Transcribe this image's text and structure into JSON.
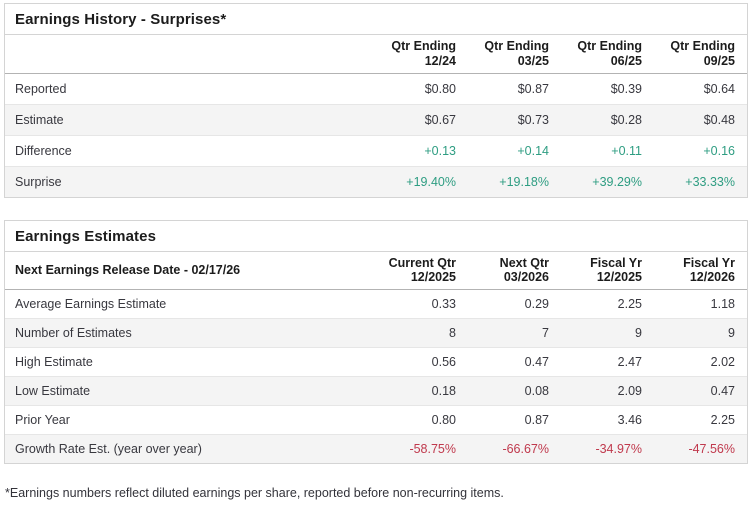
{
  "colors": {
    "green": "#2e9d82",
    "red": "#c0394d"
  },
  "surprises": {
    "title": "Earnings History - Surprises*",
    "columns": [
      {
        "line1": "Qtr Ending",
        "line2": "12/24"
      },
      {
        "line1": "Qtr Ending",
        "line2": "03/25"
      },
      {
        "line1": "Qtr Ending",
        "line2": "06/25"
      },
      {
        "line1": "Qtr Ending",
        "line2": "09/25"
      }
    ],
    "rows": [
      {
        "label": "Reported",
        "color": "default",
        "values": [
          "$0.80",
          "$0.87",
          "$0.39",
          "$0.64"
        ]
      },
      {
        "label": "Estimate",
        "color": "default",
        "values": [
          "$0.67",
          "$0.73",
          "$0.28",
          "$0.48"
        ]
      },
      {
        "label": "Difference",
        "color": "green",
        "values": [
          "+0.13",
          "+0.14",
          "+0.11",
          "+0.16"
        ]
      },
      {
        "label": "Surprise",
        "color": "green",
        "values": [
          "+19.40%",
          "+19.18%",
          "+39.29%",
          "+33.33%"
        ]
      }
    ]
  },
  "estimates": {
    "title": "Earnings Estimates",
    "header_label": "Next Earnings Release Date - 02/17/26",
    "columns": [
      {
        "line1": "Current Qtr",
        "line2": "12/2025"
      },
      {
        "line1": "Next Qtr",
        "line2": "03/2026"
      },
      {
        "line1": "Fiscal Yr",
        "line2": "12/2025"
      },
      {
        "line1": "Fiscal Yr",
        "line2": "12/2026"
      }
    ],
    "rows": [
      {
        "label": "Average Earnings Estimate",
        "color": "default",
        "values": [
          "0.33",
          "0.29",
          "2.25",
          "1.18"
        ]
      },
      {
        "label": "Number of Estimates",
        "color": "default",
        "values": [
          "8",
          "7",
          "9",
          "9"
        ]
      },
      {
        "label": "High Estimate",
        "color": "default",
        "values": [
          "0.56",
          "0.47",
          "2.47",
          "2.02"
        ]
      },
      {
        "label": "Low Estimate",
        "color": "default",
        "values": [
          "0.18",
          "0.08",
          "2.09",
          "0.47"
        ]
      },
      {
        "label": "Prior Year",
        "color": "default",
        "values": [
          "0.80",
          "0.87",
          "3.46",
          "2.25"
        ]
      },
      {
        "label": "Growth Rate Est. (year over year)",
        "color": "red",
        "values": [
          "-58.75%",
          "-66.67%",
          "-34.97%",
          "-47.56%"
        ]
      }
    ]
  },
  "footnote": "*Earnings numbers reflect diluted earnings per share, reported before non-recurring items."
}
